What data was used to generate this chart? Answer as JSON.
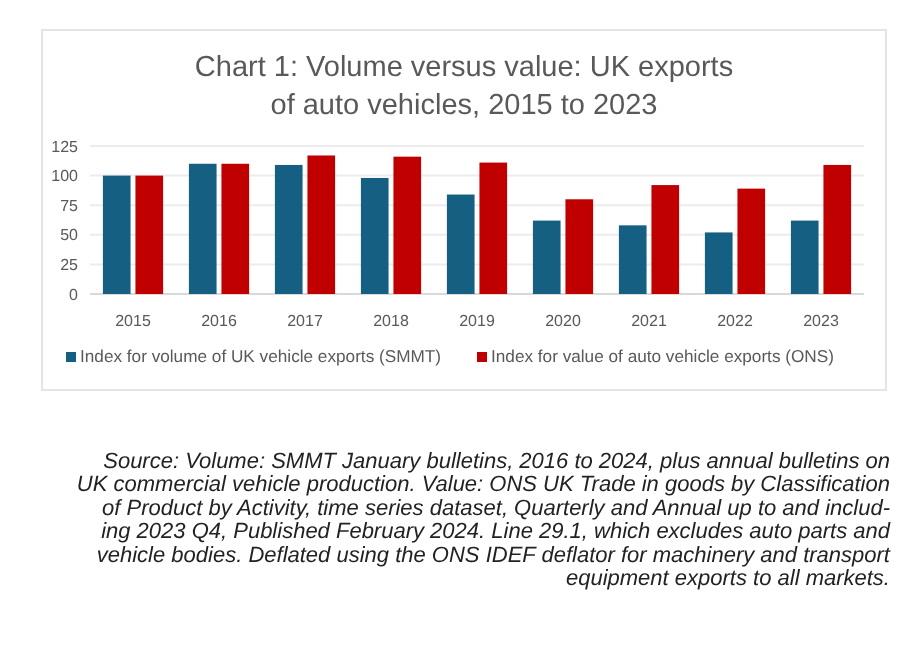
{
  "chart_data": {
    "type": "bar",
    "title": "Chart 1: Volume versus value: UK exports of auto vehicles, 2015 to 2023",
    "categories": [
      "2015",
      "2016",
      "2017",
      "2018",
      "2019",
      "2020",
      "2021",
      "2022",
      "2023"
    ],
    "series": [
      {
        "name": "Index for volume of UK vehicle exports (SMMT)",
        "color": "#156082",
        "values": [
          100,
          110,
          109,
          98,
          84,
          62,
          58,
          52,
          62
        ]
      },
      {
        "name": "Index for value of auto vehicle exports (ONS)",
        "color": "#c00000",
        "values": [
          100,
          110,
          117,
          116,
          111,
          80,
          92,
          89,
          109
        ]
      }
    ],
    "ylim": [
      0,
      125
    ],
    "yticks": [
      0,
      25,
      50,
      75,
      100,
      125
    ],
    "grid": "y",
    "legend": "bottom",
    "annotations": [
      "Source: Volume: SMMT January bulletins, 2016 to 2024, plus annual bulletins on",
      "UK commercial vehicle production.  Value: ONS UK Trade in goods by Classification",
      "of Product by Activity, time series dataset, Quarterly and Annual up to and includ-",
      "ing 2023 Q4, Published February 2024. Line 29.1, which excludes auto parts and",
      "vehicle bodies. Deflated using the ONS IDEF deflator for machinery and transport",
      "equipment exports to all markets."
    ]
  }
}
